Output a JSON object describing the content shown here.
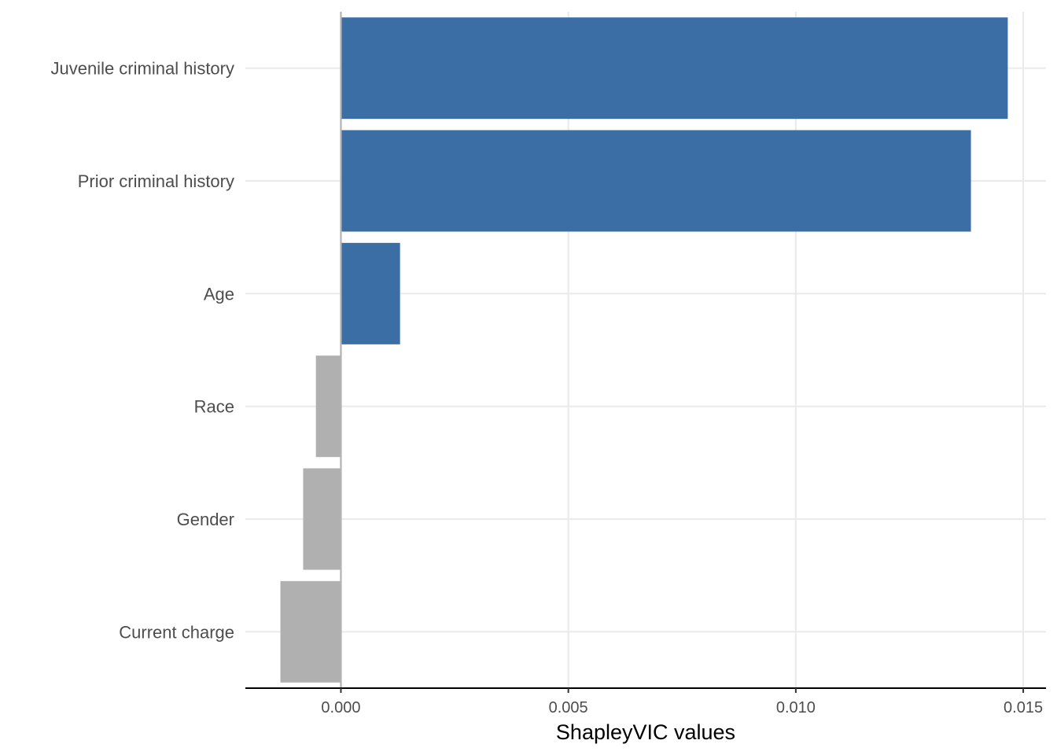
{
  "chart_data": {
    "type": "bar",
    "orientation": "horizontal",
    "title": "",
    "xlabel": "ShapleyVIC values",
    "ylabel": "",
    "categories": [
      "Juvenile criminal history",
      "Prior criminal history",
      "Age",
      "Race",
      "Gender",
      "Current charge"
    ],
    "values": [
      0.01466,
      0.01385,
      0.0013,
      -0.00055,
      -0.00083,
      -0.00133
    ],
    "xlim": [
      -0.0021,
      0.0155
    ],
    "x_ticks": [
      0.0,
      0.005,
      0.01,
      0.015
    ],
    "x_tick_labels": [
      "0.000",
      "0.005",
      "0.010",
      "0.015"
    ],
    "grid": "major",
    "legend": "none",
    "colors": {
      "positive": "#3a6ea5",
      "negative": "#b0b0b0",
      "grid": "#ebebeb",
      "zero_line": "#b3b3b3",
      "axis_line": "#000000",
      "tick_text": "#4d4d4d"
    }
  }
}
